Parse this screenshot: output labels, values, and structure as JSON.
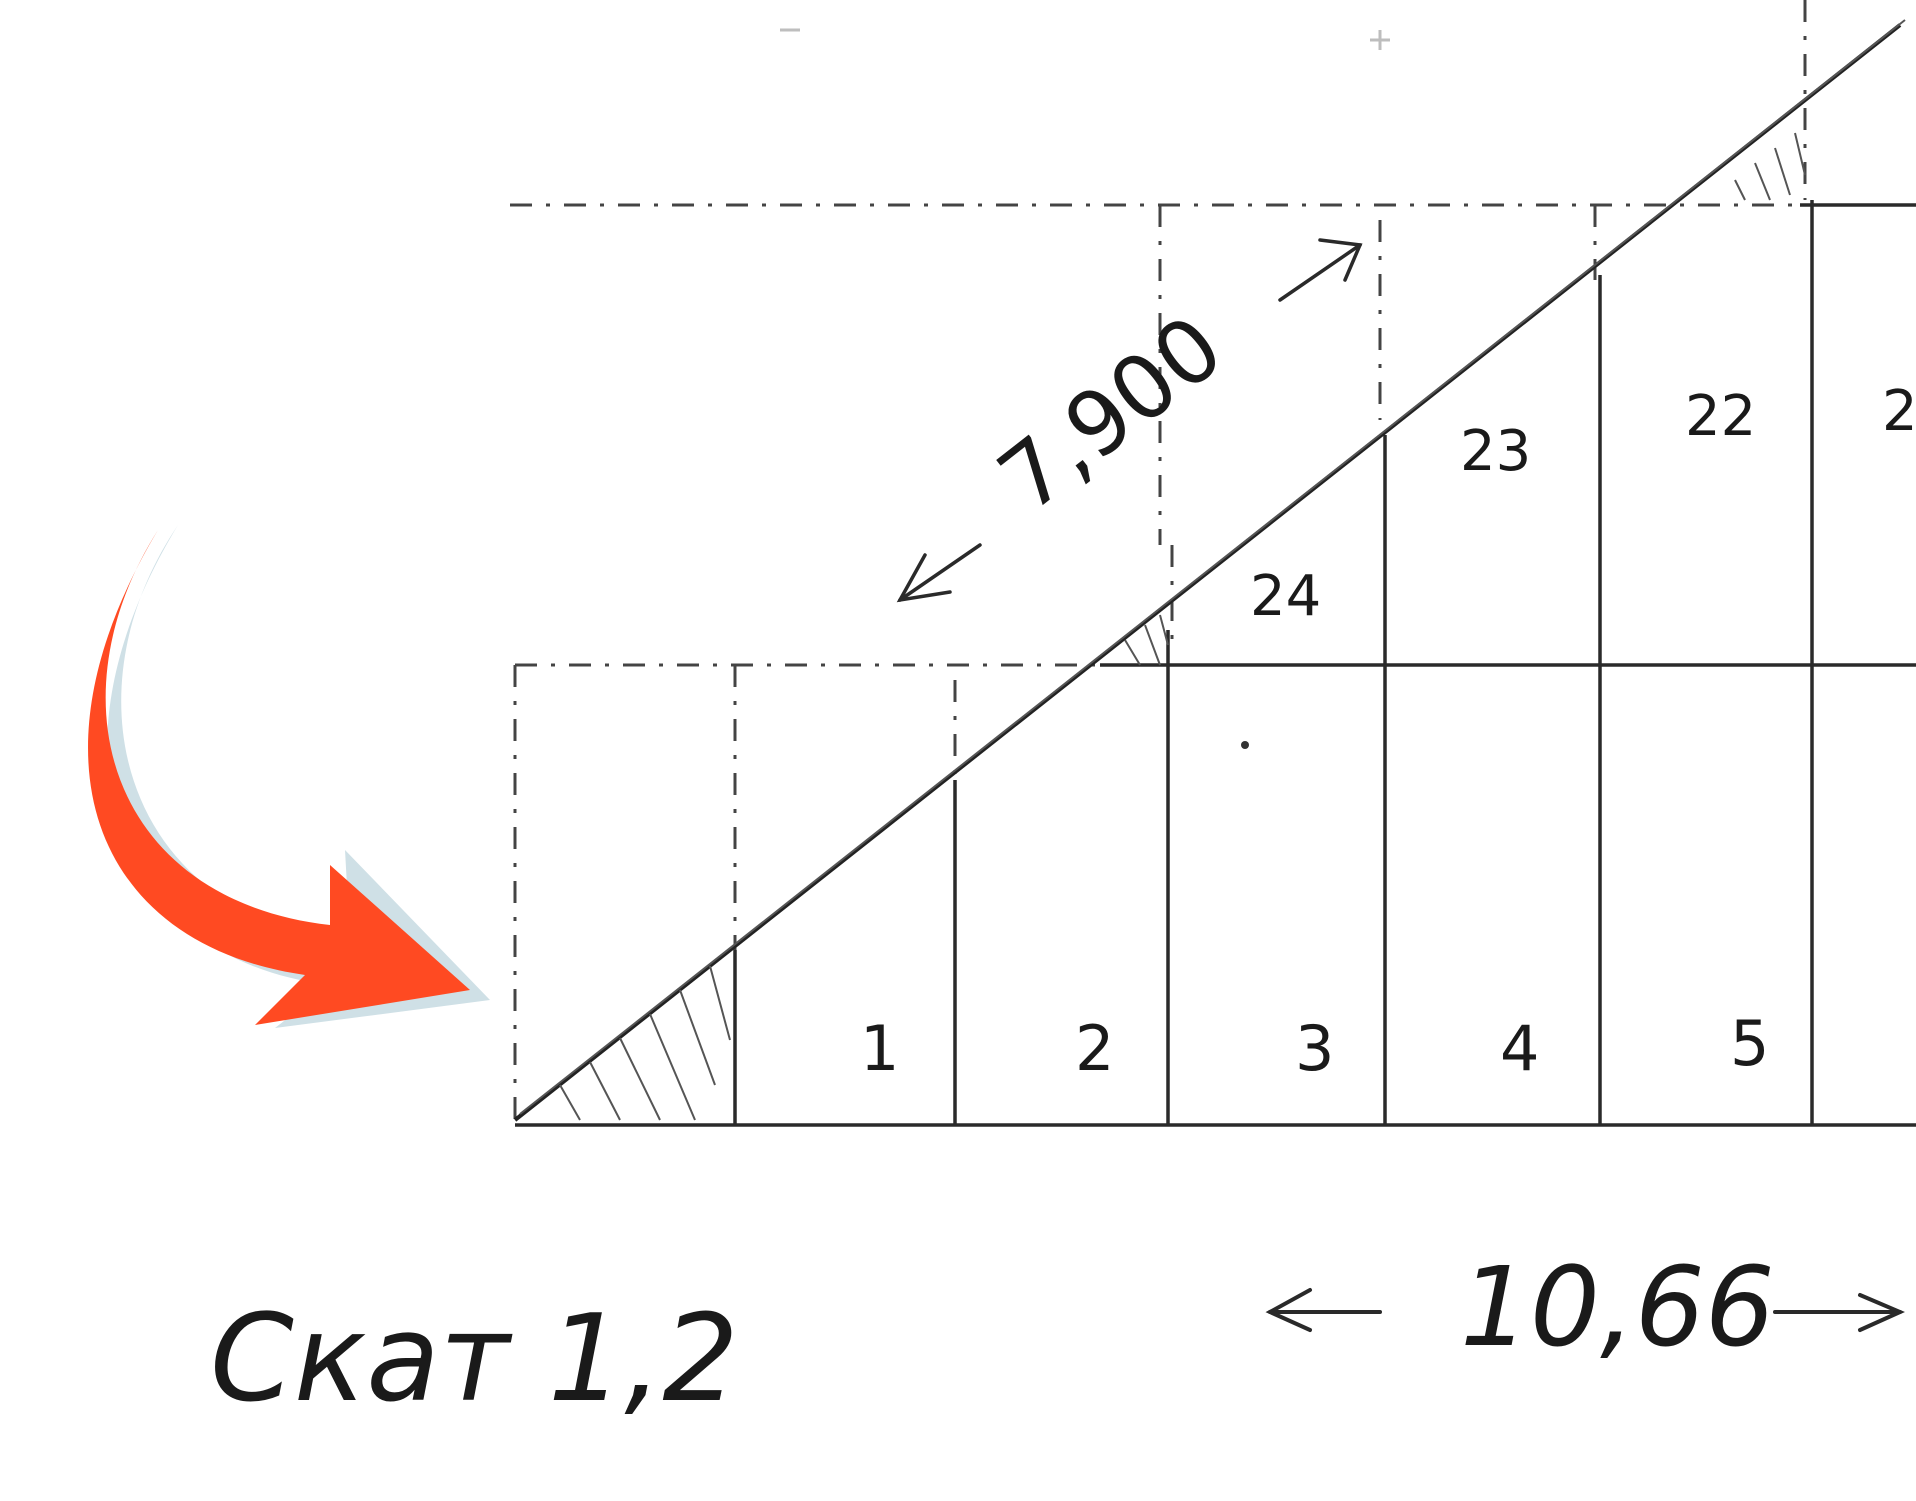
{
  "drawing": {
    "slope_label": "Скат 1,2",
    "length_label": "7,900",
    "span_label": "10,66"
  },
  "panels": {
    "bottom_row": [
      "1",
      "2",
      "3",
      "4",
      "5"
    ],
    "upper_row": [
      "24",
      "23",
      "22",
      "2"
    ]
  },
  "annotation": {
    "arrow_color": "#ff4a22",
    "arrow_shadow_color": "#cfe0e6"
  }
}
